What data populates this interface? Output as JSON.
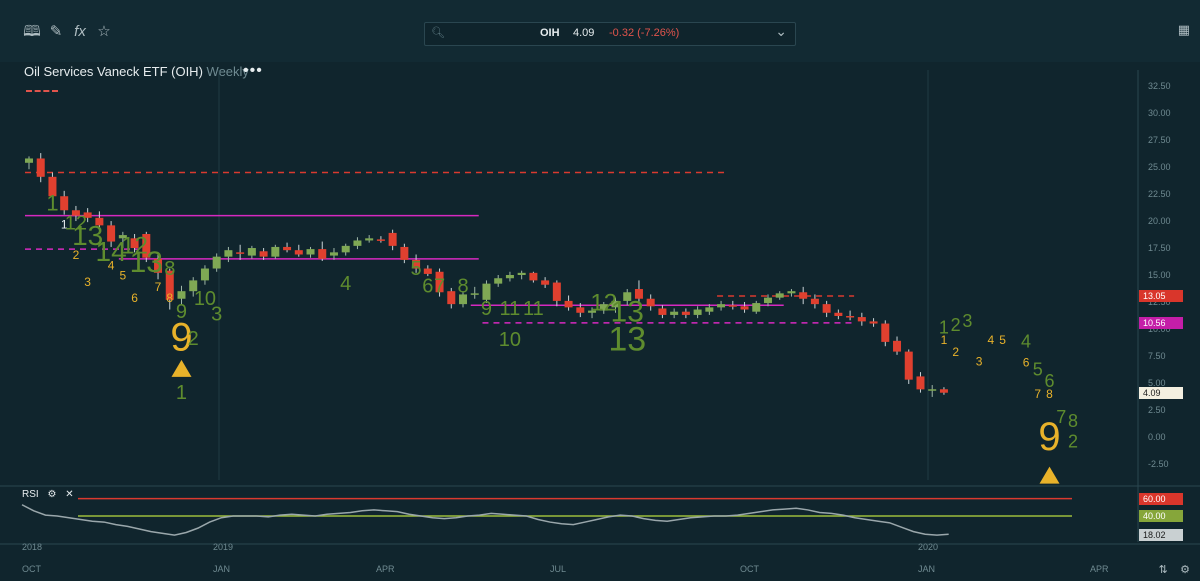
{
  "toolbar": {
    "icons": [
      "book-icon",
      "pencil-icon",
      "function-icon",
      "star-icon"
    ],
    "symbol": {
      "ticker": "OIH",
      "price": "4.09",
      "change": "-0.32 (-7.26%)"
    }
  },
  "chart": {
    "title": "Oil Services Vaneck ETF (OIH)",
    "interval": "Weekly",
    "more_label": "•••"
  },
  "colors": {
    "up": "#7fa854",
    "down": "#e0402f",
    "magenta": "#d629c0",
    "td_green": "#5e8c2e",
    "td_yellow": "#e8b22a",
    "red_line": "#d93a2f"
  },
  "chart_data": {
    "type": "candlestick",
    "title": "Oil Services Vaneck ETF (OIH)",
    "y_ticks": [
      "32.50",
      "30.00",
      "27.50",
      "25.00",
      "22.50",
      "20.00",
      "17.50",
      "15.00",
      "12.50",
      "10.00",
      "7.50",
      "5.00",
      "2.50",
      "0.00",
      "-2.50"
    ],
    "y_tick_values": [
      32.5,
      30,
      27.5,
      25,
      22.5,
      20,
      17.5,
      15,
      12.5,
      10,
      7.5,
      5,
      2.5,
      0,
      -2.5
    ],
    "ylim": [
      -4,
      34
    ],
    "x_labels": [
      "OCT",
      "2018",
      "JAN",
      "2019",
      "APR",
      "JUL",
      "OCT",
      "JAN",
      "2020",
      "APR"
    ],
    "price_tags": [
      {
        "value": 13.05,
        "label": "13.05",
        "bg": "#d9362b",
        "fg": "#ffffff"
      },
      {
        "value": 10.56,
        "label": "10.56",
        "bg": "#c41ea8",
        "fg": "#ffffff"
      },
      {
        "value": 4.09,
        "label": "4.09",
        "bg": "#f3efe0",
        "fg": "#1a1a1a"
      }
    ],
    "levels": [
      {
        "value": 24.5,
        "style": "dashed",
        "color": "#d93a2f",
        "from": 0,
        "to": 59
      },
      {
        "value": 20.5,
        "style": "solid",
        "color": "#d629c0",
        "from": 0,
        "to": 38
      },
      {
        "value": 17.4,
        "style": "dashed",
        "color": "#d629c0",
        "from": 0,
        "to": 9
      },
      {
        "value": 16.5,
        "style": "solid",
        "color": "#d629c0",
        "from": 8,
        "to": 38
      },
      {
        "value": 13.05,
        "style": "dashed",
        "color": "#d93a2f",
        "from": 59,
        "to": 70
      },
      {
        "value": 12.2,
        "style": "solid",
        "color": "#d629c0",
        "from": 38,
        "to": 64
      },
      {
        "value": 10.56,
        "style": "dashed",
        "color": "#d629c0",
        "from": 39,
        "to": 70
      }
    ],
    "candles": [
      [
        25.4,
        26,
        24.8,
        25.8
      ],
      [
        25.8,
        26.3,
        23.6,
        24.1
      ],
      [
        24.1,
        24.5,
        21.8,
        22.3
      ],
      [
        22.3,
        22.8,
        20.6,
        21.0
      ],
      [
        21.0,
        21.4,
        20.0,
        20.5
      ],
      [
        20.8,
        21.2,
        19.9,
        20.3
      ],
      [
        20.3,
        20.9,
        19.2,
        19.6
      ],
      [
        19.6,
        20.0,
        17.6,
        18.1
      ],
      [
        18.4,
        19.0,
        17.5,
        18.7
      ],
      [
        18.4,
        18.8,
        17.1,
        17.5
      ],
      [
        18.8,
        19.0,
        16.2,
        16.6
      ],
      [
        16.5,
        16.9,
        14.6,
        15.2
      ],
      [
        15.4,
        15.6,
        11.8,
        12.7
      ],
      [
        12.8,
        14.0,
        12.2,
        13.5
      ],
      [
        13.5,
        14.8,
        13.0,
        14.5
      ],
      [
        14.5,
        15.9,
        14.1,
        15.6
      ],
      [
        15.6,
        17.0,
        15.3,
        16.7
      ],
      [
        16.7,
        17.6,
        16.2,
        17.3
      ],
      [
        17.1,
        17.8,
        16.4,
        17.0
      ],
      [
        16.8,
        17.7,
        16.5,
        17.5
      ],
      [
        17.2,
        17.5,
        16.4,
        16.7
      ],
      [
        16.7,
        17.8,
        16.5,
        17.6
      ],
      [
        17.6,
        18.0,
        17.1,
        17.3
      ],
      [
        17.3,
        17.8,
        16.7,
        16.9
      ],
      [
        16.9,
        17.6,
        16.6,
        17.4
      ],
      [
        17.4,
        18.1,
        16.3,
        16.5
      ],
      [
        16.8,
        17.5,
        16.4,
        17.1
      ],
      [
        17.1,
        17.9,
        16.8,
        17.7
      ],
      [
        17.7,
        18.5,
        17.4,
        18.2
      ],
      [
        18.2,
        18.7,
        18.0,
        18.4
      ],
      [
        18.3,
        18.6,
        18.0,
        18.2
      ],
      [
        18.9,
        19.2,
        17.3,
        17.7
      ],
      [
        17.6,
        17.9,
        16.1,
        16.4
      ],
      [
        16.4,
        16.9,
        15.2,
        15.6
      ],
      [
        15.6,
        15.9,
        14.9,
        15.1
      ],
      [
        15.3,
        15.6,
        13.0,
        13.4
      ],
      [
        13.5,
        13.8,
        11.9,
        12.3
      ],
      [
        12.3,
        13.4,
        12.0,
        13.2
      ],
      [
        13.2,
        13.9,
        12.8,
        13.3
      ],
      [
        12.7,
        14.5,
        12.4,
        14.2
      ],
      [
        14.2,
        15.0,
        13.9,
        14.7
      ],
      [
        14.7,
        15.3,
        14.4,
        15.0
      ],
      [
        15.0,
        15.4,
        14.6,
        15.2
      ],
      [
        15.2,
        15.3,
        14.3,
        14.5
      ],
      [
        14.5,
        14.8,
        13.8,
        14.1
      ],
      [
        14.3,
        14.5,
        12.1,
        12.6
      ],
      [
        12.6,
        13.1,
        11.7,
        12.0
      ],
      [
        12.0,
        12.4,
        11.1,
        11.5
      ],
      [
        11.5,
        12.0,
        11.0,
        11.7
      ],
      [
        11.7,
        12.5,
        11.4,
        12.3
      ],
      [
        12.0,
        12.9,
        11.5,
        12.6
      ],
      [
        12.6,
        13.7,
        12.2,
        13.4
      ],
      [
        13.7,
        14.5,
        12.3,
        12.8
      ],
      [
        12.8,
        13.2,
        11.7,
        12.1
      ],
      [
        11.9,
        12.2,
        11.0,
        11.3
      ],
      [
        11.3,
        11.9,
        11.0,
        11.6
      ],
      [
        11.6,
        11.9,
        11.0,
        11.3
      ],
      [
        11.3,
        12.1,
        11.0,
        11.8
      ],
      [
        11.6,
        12.3,
        11.3,
        12.0
      ],
      [
        12.0,
        12.6,
        11.7,
        12.3
      ],
      [
        12.2,
        12.6,
        11.8,
        12.1
      ],
      [
        12.1,
        12.5,
        11.5,
        11.8
      ],
      [
        11.6,
        12.6,
        11.4,
        12.4
      ],
      [
        12.4,
        13.2,
        12.1,
        12.9
      ],
      [
        12.9,
        13.5,
        12.7,
        13.3
      ],
      [
        13.3,
        13.7,
        13.0,
        13.5
      ],
      [
        13.4,
        13.9,
        12.3,
        12.8
      ],
      [
        12.8,
        13.2,
        11.9,
        12.3
      ],
      [
        12.3,
        12.6,
        11.1,
        11.5
      ],
      [
        11.5,
        11.8,
        10.9,
        11.2
      ],
      [
        11.2,
        11.7,
        10.8,
        11.1
      ],
      [
        11.1,
        11.5,
        10.3,
        10.7
      ],
      [
        10.7,
        11.0,
        10.2,
        10.5
      ],
      [
        10.5,
        10.8,
        8.4,
        8.8
      ],
      [
        8.9,
        9.3,
        7.6,
        7.9
      ],
      [
        7.9,
        8.1,
        4.9,
        5.3
      ],
      [
        5.6,
        6.0,
        4.1,
        4.4
      ],
      [
        4.3,
        4.8,
        3.7,
        4.41
      ],
      [
        4.41,
        4.6,
        3.9,
        4.09
      ]
    ],
    "td_labels": [
      {
        "t": "1",
        "i": 2,
        "v": 21.0,
        "c": "g",
        "s": 22
      },
      {
        "t": "1",
        "i": 3,
        "v": 19.3,
        "c": "w",
        "s": 12
      },
      {
        "t": "12",
        "i": 4,
        "v": 19.2,
        "c": "g",
        "s": 20
      },
      {
        "t": "2",
        "i": 4,
        "v": 16.5,
        "c": "y",
        "s": 12
      },
      {
        "t": "13",
        "i": 5,
        "v": 17.8,
        "c": "g",
        "s": 28
      },
      {
        "t": "3",
        "i": 5,
        "v": 14.0,
        "c": "y",
        "s": 12
      },
      {
        "t": "14",
        "i": 7,
        "v": 16.3,
        "c": "g",
        "s": 28
      },
      {
        "t": "4",
        "i": 7,
        "v": 15.5,
        "c": "y",
        "s": 12
      },
      {
        "t": "12",
        "i": 9,
        "v": 17.0,
        "c": "g",
        "s": 24
      },
      {
        "t": "5",
        "i": 8,
        "v": 14.6,
        "c": "y",
        "s": 12
      },
      {
        "t": "13",
        "i": 10,
        "v": 15.3,
        "c": "g",
        "s": 30
      },
      {
        "t": "6",
        "i": 9,
        "v": 12.5,
        "c": "y",
        "s": 12
      },
      {
        "t": "7",
        "i": 11,
        "v": 13.5,
        "c": "y",
        "s": 12
      },
      {
        "t": "8",
        "i": 12,
        "v": 15.0,
        "c": "g",
        "s": 20
      },
      {
        "t": "8",
        "i": 12,
        "v": 12.5,
        "c": "y",
        "s": 12
      },
      {
        "t": "9",
        "i": 13,
        "v": 11.0,
        "c": "g",
        "s": 20
      },
      {
        "t": "10",
        "i": 15,
        "v": 12.2,
        "c": "g",
        "s": 20
      },
      {
        "t": "9",
        "i": 13,
        "v": 8.0,
        "c": "y",
        "s": 40
      },
      {
        "t": "2",
        "i": 14,
        "v": 8.5,
        "c": "g",
        "s": 20
      },
      {
        "t": "3",
        "i": 16,
        "v": 10.8,
        "c": "g",
        "s": 20
      },
      {
        "t": "1",
        "i": 13,
        "v": 3.5,
        "c": "g",
        "s": 20
      },
      {
        "t": "4",
        "i": 27,
        "v": 13.6,
        "c": "g",
        "s": 20
      },
      {
        "t": "5",
        "i": 33,
        "v": 15.0,
        "c": "g",
        "s": 20
      },
      {
        "t": "6",
        "i": 34,
        "v": 13.4,
        "c": "g",
        "s": 20
      },
      {
        "t": "7",
        "i": 35,
        "v": 13.4,
        "c": "g",
        "s": 20
      },
      {
        "t": "8",
        "i": 37,
        "v": 13.4,
        "c": "g",
        "s": 20
      },
      {
        "t": "9",
        "i": 39,
        "v": 11.3,
        "c": "g",
        "s": 20
      },
      {
        "t": "11",
        "i": 41,
        "v": 11.3,
        "c": "g",
        "s": 20
      },
      {
        "t": "11",
        "i": 43,
        "v": 11.3,
        "c": "g",
        "s": 20
      },
      {
        "t": "10",
        "i": 41,
        "v": 8.4,
        "c": "g",
        "s": 20
      },
      {
        "t": "12",
        "i": 49,
        "v": 11.7,
        "c": "g",
        "s": 24
      },
      {
        "t": "13",
        "i": 51,
        "v": 10.7,
        "c": "g",
        "s": 30
      },
      {
        "t": "13",
        "i": 51,
        "v": 8.0,
        "c": "g",
        "s": 34
      },
      {
        "t": "1",
        "i": 78,
        "v": 9.6,
        "c": "g",
        "s": 18
      },
      {
        "t": "1",
        "i": 78,
        "v": 8.6,
        "c": "y",
        "s": 12
      },
      {
        "t": "2",
        "i": 79,
        "v": 9.8,
        "c": "g",
        "s": 18
      },
      {
        "t": "2",
        "i": 79,
        "v": 7.5,
        "c": "y",
        "s": 12
      },
      {
        "t": "3",
        "i": 80,
        "v": 10.2,
        "c": "g",
        "s": 18
      },
      {
        "t": "3",
        "i": 81,
        "v": 6.6,
        "c": "y",
        "s": 12
      },
      {
        "t": "4",
        "i": 82,
        "v": 8.6,
        "c": "y",
        "s": 12
      },
      {
        "t": "5",
        "i": 83,
        "v": 8.6,
        "c": "y",
        "s": 12
      },
      {
        "t": "4",
        "i": 85,
        "v": 8.3,
        "c": "g",
        "s": 18
      },
      {
        "t": "6",
        "i": 85,
        "v": 6.5,
        "c": "y",
        "s": 12
      },
      {
        "t": "5",
        "i": 86,
        "v": 5.7,
        "c": "g",
        "s": 18
      },
      {
        "t": "7",
        "i": 86,
        "v": 3.6,
        "c": "y",
        "s": 12
      },
      {
        "t": "6",
        "i": 87,
        "v": 4.6,
        "c": "g",
        "s": 18
      },
      {
        "t": "8",
        "i": 87,
        "v": 3.6,
        "c": "y",
        "s": 12
      },
      {
        "t": "7",
        "i": 88,
        "v": 1.3,
        "c": "g",
        "s": 18
      },
      {
        "t": "8",
        "i": 89,
        "v": 0.9,
        "c": "g",
        "s": 18
      },
      {
        "t": "9",
        "i": 87,
        "v": -1.2,
        "c": "y",
        "s": 40
      },
      {
        "t": "2",
        "i": 89,
        "v": -1.0,
        "c": "g",
        "s": 18
      }
    ],
    "buy_triangles": [
      {
        "i": 13,
        "v": 6.3
      },
      {
        "i": 87,
        "v": -3.6
      }
    ]
  },
  "rsi": {
    "label": "RSI",
    "levels": [
      {
        "value": 60,
        "label": "60.00",
        "color": "#d93a2f"
      },
      {
        "value": 40,
        "label": "40.00",
        "color": "#9cbd3c"
      }
    ],
    "current": "18.02",
    "values": [
      53,
      46,
      41,
      40,
      38,
      36,
      34,
      33,
      30,
      28,
      25,
      22,
      20,
      18,
      21,
      26,
      33,
      38,
      40,
      40,
      40,
      39,
      41,
      42,
      41,
      40,
      42,
      43,
      44,
      46,
      47,
      46,
      45,
      42,
      40,
      38,
      37,
      38,
      40,
      41,
      43,
      42,
      41,
      40,
      36,
      33,
      31,
      30,
      33,
      36,
      39,
      41,
      40,
      37,
      35,
      34,
      36,
      38,
      39,
      40,
      40,
      41,
      43,
      45,
      47,
      48,
      49,
      47,
      44,
      43,
      41,
      38,
      36,
      34,
      32,
      27,
      22,
      19,
      18,
      19
    ]
  }
}
